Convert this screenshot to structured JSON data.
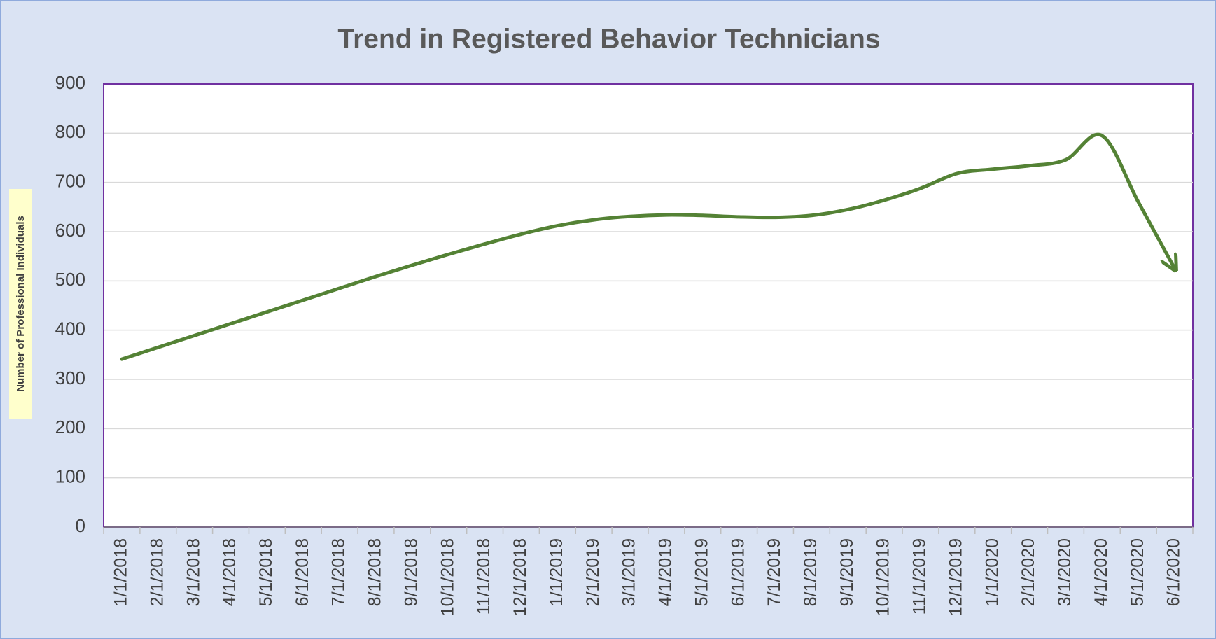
{
  "chart_data": {
    "type": "line",
    "title": "Trend in Registered Behavior Technicians",
    "y_label": "Number of Professional Individuals",
    "categories": [
      "1/1/2018",
      "2/1/2018",
      "3/1/2018",
      "4/1/2018",
      "5/1/2018",
      "6/1/2018",
      "7/1/2018",
      "8/1/2018",
      "9/1/2018",
      "10/1/2018",
      "11/1/2018",
      "12/1/2018",
      "1/1/2019",
      "2/1/2019",
      "3/1/2019",
      "4/1/2019",
      "5/1/2019",
      "6/1/2019",
      "7/1/2019",
      "8/1/2019",
      "9/1/2019",
      "10/1/2019",
      "11/1/2019",
      "12/1/2019",
      "1/1/2020",
      "2/1/2020",
      "3/1/2020",
      "4/1/2020",
      "5/1/2020",
      "6/1/2020"
    ],
    "values": [
      341,
      365,
      389,
      413,
      437,
      461,
      485,
      509,
      532,
      554,
      575,
      595,
      612,
      624,
      631,
      634,
      633,
      630,
      629,
      633,
      645,
      664,
      688,
      718,
      727,
      734,
      746,
      795,
      660,
      525
    ],
    "color": "#548235",
    "ylim": [
      0,
      900
    ],
    "yticks": [
      0,
      100,
      200,
      300,
      400,
      500,
      600,
      700,
      800,
      900
    ],
    "grid": true
  }
}
